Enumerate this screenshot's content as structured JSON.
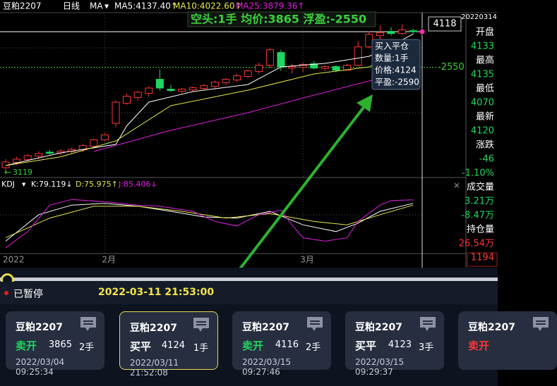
{
  "toolbar": {
    "symbol": "豆粕2207",
    "period": "日线",
    "ma_menu": "MA",
    "ma5": "MA5:4137.40↑",
    "ma10": "MA10:4022.60↑",
    "ma25": "MA25:3879.36↑"
  },
  "position_banner": "空头:1手 均价:3865 浮盈:-2550",
  "chart": {
    "ylim": [
      3068,
      4243
    ],
    "up_color": "#ff3535",
    "down_color": "#1ed760",
    "candles": [
      [
        3153,
        3213,
        3119,
        3193
      ],
      [
        3190,
        3230,
        3170,
        3213
      ],
      [
        3210,
        3250,
        3195,
        3238
      ],
      [
        3235,
        3270,
        3215,
        3253
      ],
      [
        3263,
        3280,
        3245,
        3255
      ],
      [
        3258,
        3285,
        3240,
        3270
      ],
      [
        3268,
        3295,
        3255,
        3283
      ],
      [
        3280,
        3320,
        3265,
        3310
      ],
      [
        3305,
        3360,
        3290,
        3350
      ],
      [
        3350,
        3400,
        3340,
        3385
      ],
      [
        3468,
        3630,
        3440,
        3618
      ],
      [
        3610,
        3680,
        3600,
        3660
      ],
      [
        3650,
        3700,
        3630,
        3688
      ],
      [
        3680,
        3730,
        3660,
        3718
      ],
      [
        3780,
        3850,
        3700,
        3718
      ],
      [
        3710,
        3740,
        3690,
        3700
      ],
      [
        3695,
        3720,
        3680,
        3710
      ],
      [
        3705,
        3730,
        3690,
        3720
      ],
      [
        3715,
        3745,
        3700,
        3735
      ],
      [
        3730,
        3770,
        3715,
        3760
      ],
      [
        3755,
        3790,
        3740,
        3780
      ],
      [
        3775,
        3820,
        3760,
        3805
      ],
      [
        3800,
        3850,
        3790,
        3840
      ],
      [
        3835,
        3900,
        3820,
        3880
      ],
      [
        3880,
        4000,
        3860,
        3990
      ],
      [
        3970,
        3990,
        3840,
        3870
      ],
      [
        3860,
        3890,
        3820,
        3870
      ],
      [
        3865,
        3900,
        3830,
        3885
      ],
      [
        3890,
        3910,
        3850,
        3860
      ],
      [
        3858,
        3880,
        3840,
        3870
      ],
      [
        3870,
        3880,
        3830,
        3845
      ],
      [
        3845,
        3890,
        3840,
        3880
      ],
      [
        3880,
        4050,
        3870,
        4010
      ],
      [
        4010,
        4120,
        4000,
        4100
      ],
      [
        4090,
        4160,
        4060,
        4110
      ],
      [
        4120,
        4150,
        4090,
        4105
      ],
      [
        4105,
        4170,
        4095,
        4130
      ],
      [
        4125,
        4140,
        4100,
        4118
      ]
    ],
    "last_price": 4118,
    "cost_line": {
      "value": 3865,
      "label": "-2550"
    },
    "low_label": 3119,
    "ma": [
      {
        "color": "#ffffff",
        "x": [
          0,
          5,
          10,
          11,
          13,
          17,
          22,
          25,
          29,
          33,
          37
        ],
        "values": [
          3168,
          3258,
          3318,
          3450,
          3618,
          3693,
          3743,
          3868,
          3893,
          3943,
          4100
        ]
      },
      {
        "color": "#e8e84a",
        "x": [
          0,
          5,
          10,
          15,
          22,
          28,
          33,
          37
        ],
        "values": [
          3168,
          3230,
          3343,
          3593,
          3703,
          3818,
          3868,
          4043
        ]
      },
      {
        "color": "#e020e0",
        "x": [
          8,
          15,
          22,
          28,
          33,
          37
        ],
        "values": [
          3268,
          3418,
          3543,
          3668,
          3768,
          3843
        ]
      }
    ],
    "x_labels": [
      {
        "index": 0,
        "label": "2022"
      },
      {
        "index": 9,
        "label": "2月"
      },
      {
        "index": 27,
        "label": "3月"
      }
    ],
    "tooltip": [
      "买入平仓",
      "数量:1手",
      "价格:4124",
      "平盈:-2590"
    ]
  },
  "kdj": {
    "menu": "KDJ",
    "k_label": "K:79.119↓",
    "d_label": "D:75.975↑",
    "j_label": "J:85.406↓",
    "ylim": [
      0,
      100
    ],
    "lines": [
      {
        "color": "#ffffff",
        "x": [
          0,
          3,
          6,
          9,
          12,
          15,
          18,
          21,
          24,
          27,
          30,
          32,
          34,
          37
        ],
        "values": [
          12,
          59,
          76,
          79,
          74,
          65,
          55,
          53,
          65,
          41,
          29,
          44,
          65,
          79.119
        ]
      },
      {
        "color": "#e8e84a",
        "x": [
          0,
          4,
          8,
          12,
          16,
          20,
          24,
          28,
          31,
          34,
          37
        ],
        "values": [
          18,
          53,
          74,
          74,
          65,
          53,
          61,
          47,
          41,
          59,
          75.975
        ]
      },
      {
        "color": "#e020e0",
        "x": [
          0,
          2,
          4,
          6,
          9,
          12,
          14,
          17,
          19,
          21,
          23,
          25,
          26,
          27,
          29,
          31,
          32,
          34,
          35,
          37
        ],
        "values": [
          0,
          29,
          76,
          86,
          82,
          76,
          74,
          65,
          47,
          39,
          59,
          67,
          41,
          18,
          12,
          18,
          47,
          76,
          84,
          85.406
        ]
      }
    ]
  },
  "quote_panel": {
    "date": "20220314",
    "items": [
      {
        "text": "开盘",
        "color": "#ffffff"
      },
      {
        "text": "4133",
        "color": "#1ed760"
      },
      {
        "text": "最高",
        "color": "#ffffff"
      },
      {
        "text": "4135",
        "color": "#1ed760"
      },
      {
        "text": "最低",
        "color": "#ffffff"
      },
      {
        "text": "4070",
        "color": "#1ed760"
      },
      {
        "text": "最新",
        "color": "#ffffff"
      },
      {
        "text": "4120",
        "color": "#1ed760"
      },
      {
        "text": "涨跌",
        "color": "#ffffff"
      },
      {
        "text": "-46",
        "color": "#1ed760"
      },
      {
        "text": "-1.10%",
        "color": "#1ed760"
      },
      {
        "text": "成交量",
        "color": "#ffffff"
      },
      {
        "text": "3.21万",
        "color": "#1ed760"
      },
      {
        "text": "-8.47万",
        "color": "#1ed760"
      },
      {
        "text": "持仓量",
        "color": "#ffffff"
      },
      {
        "text": "26.54万",
        "color": "#ff3535"
      },
      {
        "text": "1194",
        "color": "#ff3535"
      }
    ]
  },
  "playback": {
    "status": "已暂停",
    "time": "2022-03-11 21:53:00"
  },
  "trades": [
    {
      "symbol": "豆粕2207",
      "action": "卖开",
      "action_color": "#1ed760",
      "price": "3865",
      "qty": "2手",
      "time": "2022/03/04 09:25:34"
    },
    {
      "symbol": "豆粕2207",
      "action": "买平",
      "action_color": "#ffffff",
      "price": "4124",
      "qty": "1手",
      "time": "2022/03/11 21:52:08"
    },
    {
      "symbol": "豆粕2207",
      "action": "卖开",
      "action_color": "#1ed760",
      "price": "4116",
      "qty": "2手",
      "time": "2022/03/15 09:27:46"
    },
    {
      "symbol": "豆粕2207",
      "action": "买平",
      "action_color": "#ffffff",
      "price": "4123",
      "qty": "3手",
      "time": "2022/03/15 09:29:37"
    },
    {
      "symbol": "豆粕2207",
      "action": "卖开",
      "action_color": "#ff3535"
    }
  ]
}
